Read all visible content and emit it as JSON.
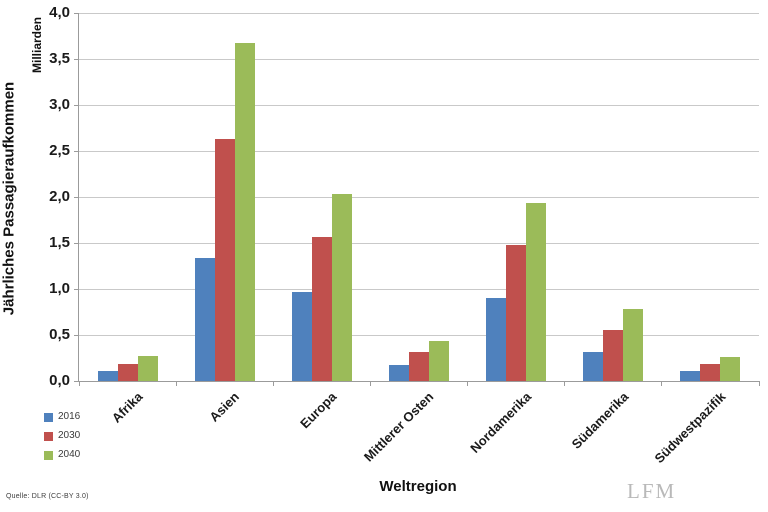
{
  "chart_data": {
    "type": "bar",
    "title": "",
    "xlabel": "Weltregion",
    "ylabel": "Jährliches Passagieraufkommen",
    "y_unit_label": "Milliarden",
    "categories": [
      "Afrika",
      "Asien",
      "Europa",
      "Mittlerer Osten",
      "Nordamerika",
      "Südamerika",
      "Südwestpazifik"
    ],
    "series": [
      {
        "name": "2016",
        "color": "#4F81BD",
        "values": [
          0.11,
          1.34,
          0.97,
          0.17,
          0.9,
          0.32,
          0.11
        ]
      },
      {
        "name": "2030",
        "color": "#C0504D",
        "values": [
          0.19,
          2.63,
          1.56,
          0.32,
          1.48,
          0.55,
          0.18
        ]
      },
      {
        "name": "2040",
        "color": "#9BBB59",
        "values": [
          0.27,
          3.67,
          2.03,
          0.44,
          1.93,
          0.78,
          0.26
        ]
      }
    ],
    "ylim": [
      0,
      4
    ],
    "ytick_step": 0.5,
    "ytick_labels": [
      "0,0",
      "0,5",
      "1,0",
      "1,5",
      "2,0",
      "2,5",
      "3,0",
      "3,5",
      "4,0"
    ],
    "grid": true,
    "legend_position": "bottom-left"
  },
  "footer": {
    "source": "Quelle: DLR (CC-BY 3.0)",
    "watermark": "LFM"
  }
}
